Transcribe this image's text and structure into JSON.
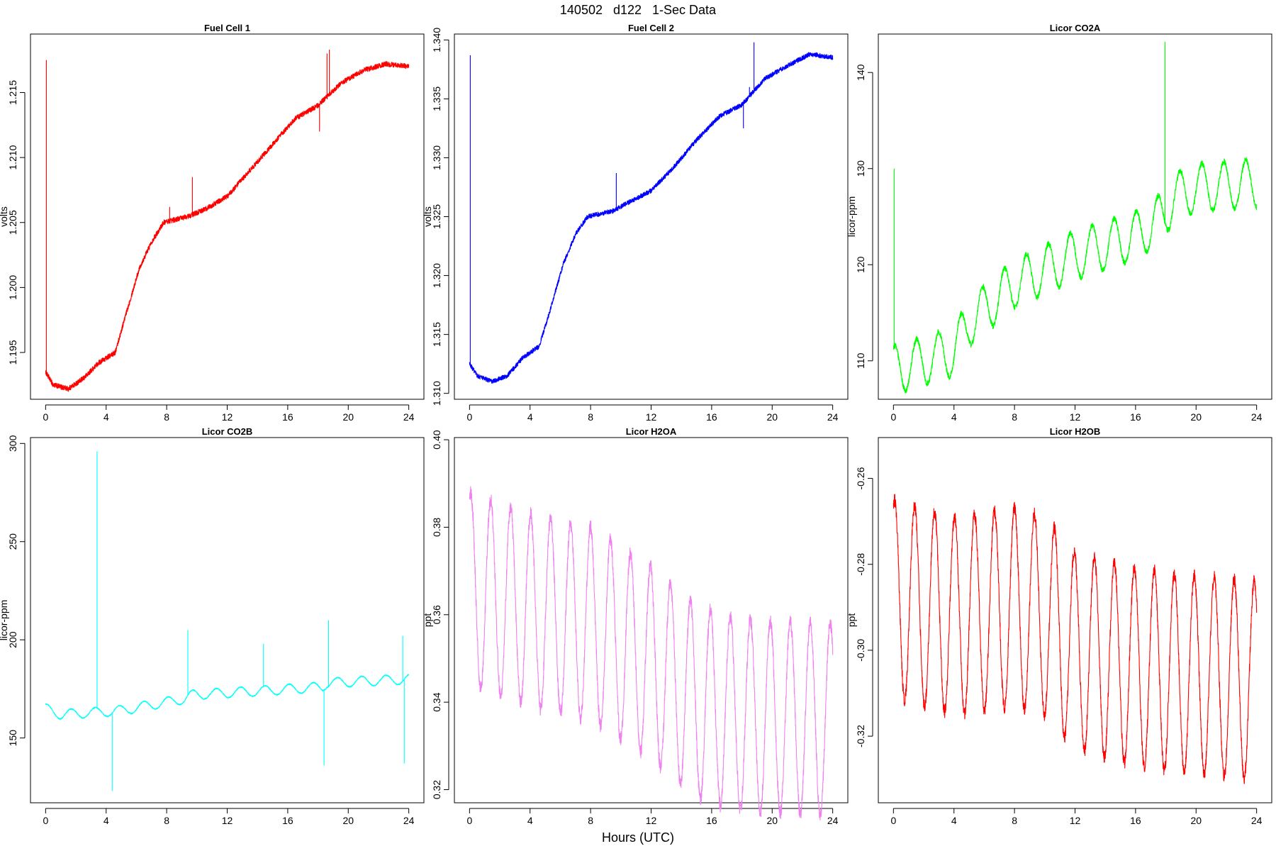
{
  "figure": {
    "title": "140502   d122   1-Sec Data",
    "xlabel": "Hours (UTC)",
    "background": "#ffffff"
  },
  "chart_data": [
    {
      "type": "line",
      "title": "Fuel Cell 1",
      "xlabel": "",
      "ylabel": "volts",
      "color": "#ff0000",
      "xlim": [
        -1,
        25
      ],
      "ylim": [
        1.1914,
        1.2195
      ],
      "xticks": [
        0,
        4,
        8,
        12,
        16,
        20,
        24
      ],
      "yticks": [
        1.195,
        1.2,
        1.205,
        1.21,
        1.215
      ],
      "ytick_labels": [
        "1.195",
        "1.200",
        "1.205",
        "1.210",
        "1.215"
      ],
      "noise": 0.0002,
      "trend": [
        [
          0,
          1.1935
        ],
        [
          0.5,
          1.1925
        ],
        [
          1.5,
          1.1922
        ],
        [
          2.5,
          1.193
        ],
        [
          3.5,
          1.1942
        ],
        [
          4.6,
          1.195
        ],
        [
          5.2,
          1.1975
        ],
        [
          6.2,
          1.2015
        ],
        [
          7.0,
          1.2035
        ],
        [
          7.8,
          1.205
        ],
        [
          9.5,
          1.2055
        ],
        [
          10.5,
          1.206
        ],
        [
          12.0,
          1.207
        ],
        [
          13.5,
          1.209
        ],
        [
          15.0,
          1.211
        ],
        [
          16.5,
          1.213
        ],
        [
          18.0,
          1.214
        ],
        [
          19.5,
          1.2157
        ],
        [
          21.0,
          1.2167
        ],
        [
          22.5,
          1.2172
        ],
        [
          24.0,
          1.217
        ]
      ],
      "spikes": [
        [
          0.05,
          1.2175
        ],
        [
          9.7,
          1.2085
        ],
        [
          8.2,
          1.2062
        ],
        [
          18.1,
          1.212
        ],
        [
          18.6,
          1.218
        ],
        [
          18.75,
          1.2183
        ]
      ]
    },
    {
      "type": "line",
      "title": "Fuel Cell 2",
      "xlabel": "",
      "ylabel": "volts",
      "color": "#0000ff",
      "xlim": [
        -1,
        25
      ],
      "ylim": [
        1.3095,
        1.3405
      ],
      "xticks": [
        0,
        4,
        8,
        12,
        16,
        20,
        24
      ],
      "yticks": [
        1.31,
        1.315,
        1.32,
        1.325,
        1.33,
        1.335,
        1.34
      ],
      "ytick_labels": [
        "1.310",
        "1.315",
        "1.320",
        "1.325",
        "1.330",
        "1.335",
        "1.340"
      ],
      "noise": 0.0002,
      "trend": [
        [
          0,
          1.3125
        ],
        [
          0.5,
          1.3115
        ],
        [
          1.5,
          1.311
        ],
        [
          2.5,
          1.3115
        ],
        [
          3.5,
          1.313
        ],
        [
          4.6,
          1.314
        ],
        [
          5.2,
          1.3165
        ],
        [
          6.2,
          1.321
        ],
        [
          7.0,
          1.3235
        ],
        [
          7.8,
          1.325
        ],
        [
          9.5,
          1.3255
        ],
        [
          10.5,
          1.3262
        ],
        [
          12.0,
          1.3272
        ],
        [
          13.5,
          1.3292
        ],
        [
          15.0,
          1.3315
        ],
        [
          16.5,
          1.3335
        ],
        [
          18.0,
          1.3345
        ],
        [
          19.5,
          1.3367
        ],
        [
          21.0,
          1.3378
        ],
        [
          22.5,
          1.3388
        ],
        [
          24.0,
          1.3385
        ]
      ],
      "spikes": [
        [
          0.05,
          1.3387
        ],
        [
          9.7,
          1.3287
        ],
        [
          18.1,
          1.3325
        ],
        [
          18.5,
          1.336
        ],
        [
          18.8,
          1.3398
        ]
      ]
    },
    {
      "type": "line",
      "title": "Licor CO2A",
      "xlabel": "",
      "ylabel": "licor-ppm",
      "color": "#00ff00",
      "xlim": [
        -1,
        25
      ],
      "ylim": [
        106,
        144
      ],
      "xticks": [
        0,
        4,
        8,
        12,
        16,
        20,
        24
      ],
      "yticks": [
        110,
        120,
        130,
        140
      ],
      "ytick_labels": [
        "110",
        "120",
        "130",
        "140"
      ],
      "noise": 0.3,
      "osc_amp": 2.5,
      "osc_period": 1.45,
      "trend": [
        [
          0,
          109
        ],
        [
          4,
          111
        ],
        [
          5,
          114
        ],
        [
          8,
          118
        ],
        [
          12,
          121
        ],
        [
          16,
          123
        ],
        [
          17.8,
          125
        ],
        [
          18.5,
          127
        ],
        [
          20,
          128
        ],
        [
          24,
          128.5
        ]
      ],
      "spikes": [
        [
          0.05,
          130
        ],
        [
          17.95,
          143.2
        ]
      ]
    },
    {
      "type": "line",
      "title": "Licor CO2B",
      "xlabel": "",
      "ylabel": "licor-ppm",
      "color": "#00ffff",
      "xlim": [
        -1,
        25
      ],
      "ylim": [
        117,
        303
      ],
      "xticks": [
        0,
        4,
        8,
        12,
        16,
        20,
        24
      ],
      "yticks": [
        150,
        200,
        250,
        300
      ],
      "ytick_labels": [
        "150",
        "200",
        "250",
        "300"
      ],
      "noise": 0.3,
      "osc_amp": 2.5,
      "osc_period": 1.6,
      "trend": [
        [
          0,
          165
        ],
        [
          1.0,
          162
        ],
        [
          3.3,
          163
        ],
        [
          5,
          164
        ],
        [
          9.2,
          170
        ],
        [
          9.7,
          172
        ],
        [
          14.3,
          174
        ],
        [
          18.3,
          176
        ],
        [
          18.6,
          178
        ],
        [
          24,
          180
        ]
      ],
      "spikes": [
        [
          3.4,
          296
        ],
        [
          4.4,
          123
        ],
        [
          9.4,
          205
        ],
        [
          14.4,
          198
        ],
        [
          18.4,
          136
        ],
        [
          18.7,
          210
        ],
        [
          23.6,
          202
        ],
        [
          23.7,
          137
        ]
      ]
    },
    {
      "type": "line",
      "title": "Licor H2OA",
      "xlabel": "",
      "ylabel": "ppt",
      "color": "#ee82ee",
      "xlim": [
        -1,
        25
      ],
      "ylim": [
        0.317,
        0.4005
      ],
      "xticks": [
        0,
        4,
        8,
        12,
        16,
        20,
        24
      ],
      "yticks": [
        0.32,
        0.34,
        0.36,
        0.38,
        0.4
      ],
      "ytick_labels": [
        "0.32",
        "0.34",
        "0.36",
        "0.38",
        "0.40"
      ],
      "noise": 0.0016,
      "osc_amp": 0.022,
      "osc_period": 1.32,
      "trend": [
        [
          0,
          0.366
        ],
        [
          4,
          0.361
        ],
        [
          8,
          0.358
        ],
        [
          12,
          0.349
        ],
        [
          15,
          0.34
        ],
        [
          18,
          0.337
        ],
        [
          24,
          0.336
        ]
      ],
      "spikes": []
    },
    {
      "type": "line",
      "title": "Licor H2OB",
      "xlabel": "",
      "ylabel": "ppt",
      "color": "#ff0000",
      "xlim": [
        -1,
        25
      ],
      "ylim": [
        -0.3355,
        -0.2505
      ],
      "xticks": [
        0,
        4,
        8,
        12,
        16,
        20,
        24
      ],
      "yticks": [
        -0.32,
        -0.3,
        -0.28,
        -0.26
      ],
      "ytick_labels": [
        "-0.32",
        "-0.30",
        "-0.28",
        "-0.26"
      ],
      "noise": 0.0015,
      "osc_amp": 0.023,
      "osc_period": 1.32,
      "trend": [
        [
          0,
          -0.288
        ],
        [
          4,
          -0.292
        ],
        [
          8,
          -0.29
        ],
        [
          10,
          -0.292
        ],
        [
          12,
          -0.3
        ],
        [
          15,
          -0.303
        ],
        [
          18,
          -0.305
        ],
        [
          24,
          -0.307
        ]
      ],
      "spikes": []
    }
  ]
}
